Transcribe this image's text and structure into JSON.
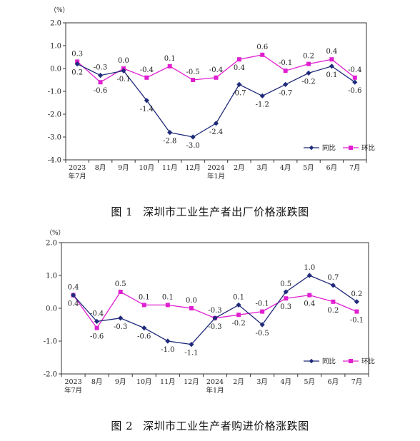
{
  "colors": {
    "yoy": "#1f2a7a",
    "mom": "#e020d0",
    "axis": "#333333",
    "text": "#222222"
  },
  "charts": [
    {
      "caption_prefix": "图 1",
      "caption_title": "深圳市工业生产者出厂价格涨跌图",
      "unit_label": "（%）",
      "legend": {
        "yoy": "同比",
        "mom": "环比"
      }
    },
    {
      "caption_prefix": "图 2",
      "caption_title": "深圳市工业生产者购进价格涨跌图",
      "unit_label": "（%）",
      "legend": {
        "yoy": "同比",
        "mom": "环比"
      }
    }
  ],
  "chart_data": [
    {
      "type": "line",
      "categories": [
        "2023\n年7月",
        "8月",
        "9月",
        "10月",
        "11月",
        "12月",
        "2024\n年1月",
        "2月",
        "3月",
        "4月",
        "5月",
        "6月",
        "7月"
      ],
      "ylim": [
        -4.0,
        2.0
      ],
      "yticks": [
        "-4.0",
        "-3.0",
        "-2.0",
        "-1.0",
        "0.0",
        "1.0",
        "2.0"
      ],
      "legend_position": "bottom-right",
      "series": [
        {
          "name": "同比",
          "key": "yoy",
          "marker": "diamond",
          "values": [
            0.2,
            -0.3,
            -0.1,
            -1.4,
            -2.8,
            -3.0,
            -2.4,
            -0.7,
            -1.2,
            -0.7,
            -0.2,
            0.1,
            -0.6
          ],
          "labels": [
            "0.2",
            "-0.3",
            "-0.1",
            "-1.4",
            "-2.8",
            "-3.0",
            "-2.4",
            "-0.7",
            "-1.2",
            "-0.7",
            "-0.2",
            "0.1",
            "-0.6"
          ]
        },
        {
          "name": "环比",
          "key": "mom",
          "marker": "square",
          "values": [
            0.3,
            -0.6,
            0.0,
            -0.4,
            0.1,
            -0.5,
            -0.4,
            0.4,
            0.6,
            -0.1,
            0.2,
            0.4,
            -0.4
          ],
          "labels": [
            "0.3",
            "-0.6",
            "0.0",
            "-0.4",
            "0.1",
            "-0.5",
            "-0.4",
            "0.4",
            "0.6",
            "-0.1",
            "0.2",
            "0.4",
            "-0.4"
          ]
        }
      ]
    },
    {
      "type": "line",
      "categories": [
        "2023\n年7月",
        "8月",
        "9月",
        "10月",
        "11月",
        "12月",
        "2024\n年1月",
        "2月",
        "3月",
        "4月",
        "5月",
        "6月",
        "7月"
      ],
      "ylim": [
        -2.0,
        2.0
      ],
      "yticks": [
        "-2.0",
        "-1.0",
        "0.0",
        "1.0",
        "2.0"
      ],
      "legend_position": "bottom-right",
      "series": [
        {
          "name": "同比",
          "key": "yoy",
          "marker": "diamond",
          "values": [
            0.4,
            -0.4,
            -0.3,
            -0.6,
            -1.0,
            -1.1,
            -0.3,
            0.1,
            -0.5,
            0.5,
            1.0,
            0.7,
            0.2
          ],
          "labels": [
            "0.4",
            "-0.4",
            "-0.3",
            "-0.6",
            "-1.0",
            "-1.1",
            "-0.3",
            "0.1",
            "-0.5",
            "0.5",
            "1.0",
            "0.7",
            "0.2"
          ]
        },
        {
          "name": "环比",
          "key": "mom",
          "marker": "square",
          "values": [
            0.4,
            -0.6,
            0.5,
            0.1,
            0.1,
            0.0,
            -0.3,
            -0.2,
            -0.1,
            0.3,
            0.4,
            0.2,
            -0.1
          ],
          "labels": [
            "0.4",
            "-0.6",
            "0.5",
            "0.1",
            "0.1",
            "0.0",
            "-0.3",
            "-0.2",
            "-0.1",
            "0.3",
            "0.4",
            "0.2",
            "-0.1"
          ]
        }
      ]
    }
  ]
}
